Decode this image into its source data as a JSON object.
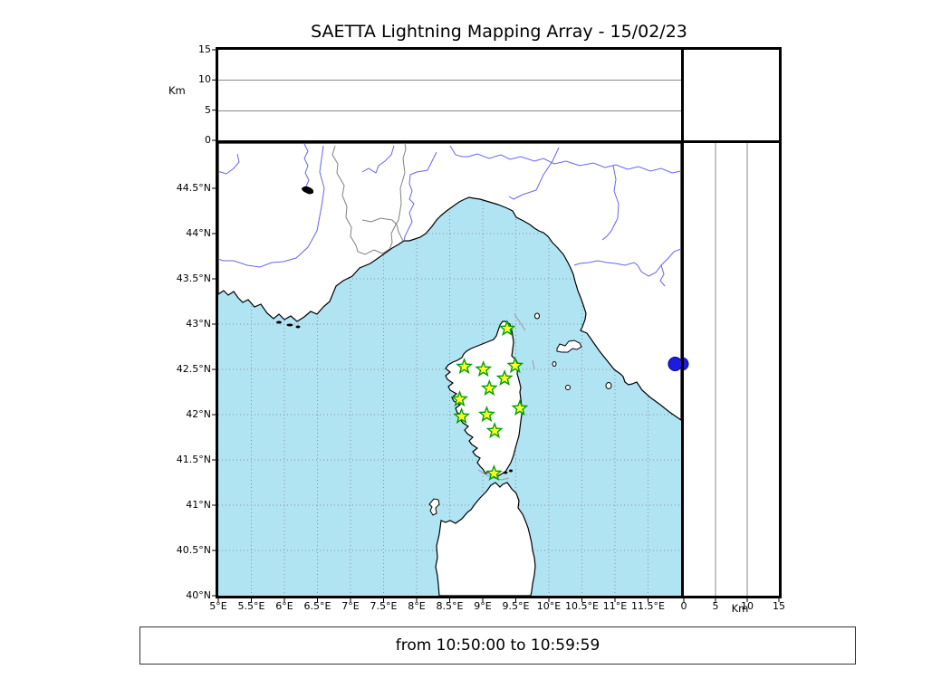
{
  "title": "SAETTA Lightning Mapping Array - 15/02/23",
  "footer": {
    "text": "from 10:50:00 to 10:59:59"
  },
  "altitude_panel": {
    "axis_label": "Km",
    "ticks": [
      {
        "v": 15,
        "l": "15"
      },
      {
        "v": 10,
        "l": "10"
      },
      {
        "v": 5,
        "l": "5"
      },
      {
        "v": 0,
        "l": "0"
      }
    ]
  },
  "side_panel": {
    "axis_label": "Km",
    "ticks": [
      {
        "v": 0,
        "l": "0"
      },
      {
        "v": 5,
        "l": "5"
      },
      {
        "v": 10,
        "l": "10"
      },
      {
        "v": 15,
        "l": "15"
      }
    ]
  },
  "map": {
    "lon_ticks": [
      {
        "v": 5,
        "l": "5°E"
      },
      {
        "v": 5.5,
        "l": "5.5°E"
      },
      {
        "v": 6,
        "l": "6°E"
      },
      {
        "v": 6.5,
        "l": "6.5°E"
      },
      {
        "v": 7,
        "l": "7°E"
      },
      {
        "v": 7.5,
        "l": "7.5°E"
      },
      {
        "v": 8,
        "l": "8°E"
      },
      {
        "v": 8.5,
        "l": "8.5°E"
      },
      {
        "v": 9,
        "l": "9°E"
      },
      {
        "v": 9.5,
        "l": "9.5°E"
      },
      {
        "v": 10,
        "l": "10°E"
      },
      {
        "v": 10.5,
        "l": "10.5°E"
      },
      {
        "v": 11,
        "l": "11°E"
      },
      {
        "v": 11.5,
        "l": "11.5°E"
      }
    ],
    "lat_ticks": [
      {
        "v": 44.5,
        "l": "44.5°N"
      },
      {
        "v": 44,
        "l": "44°N"
      },
      {
        "v": 43.5,
        "l": "43.5°N"
      },
      {
        "v": 43,
        "l": "43°N"
      },
      {
        "v": 42.5,
        "l": "42.5°N"
      },
      {
        "v": 42,
        "l": "42°N"
      },
      {
        "v": 41.5,
        "l": "41.5°N"
      },
      {
        "v": 41,
        "l": "41°N"
      },
      {
        "v": 40.5,
        "l": "40.5°N"
      },
      {
        "v": 40,
        "l": "40°N"
      }
    ]
  },
  "colors": {
    "sea": "#b0e4f2",
    "land": "#ffffff",
    "river": "#6666f0",
    "grid": "#909090",
    "station_fill": "#ffff2e",
    "station_stroke": "#00a000",
    "source_fill": "#1c1cdf",
    "source_stroke": "#0000a0"
  },
  "chart_data": {
    "type": "scatter",
    "title": "SAETTA Lightning Mapping Array - 15/02/23",
    "map_extent": {
      "lon_min": 5,
      "lon_max": 12,
      "lat_min": 40,
      "lat_max": 45
    },
    "altitude_axis_km": {
      "min": 0,
      "max": 15,
      "ticks": [
        0,
        5,
        10,
        15
      ]
    },
    "stations": [
      {
        "lon": 9.37,
        "lat": 42.95
      },
      {
        "lon": 8.72,
        "lat": 42.53
      },
      {
        "lon": 9.01,
        "lat": 42.5
      },
      {
        "lon": 9.49,
        "lat": 42.54
      },
      {
        "lon": 9.33,
        "lat": 42.4
      },
      {
        "lon": 9.1,
        "lat": 42.29
      },
      {
        "lon": 8.65,
        "lat": 42.17
      },
      {
        "lon": 9.56,
        "lat": 42.07
      },
      {
        "lon": 9.06,
        "lat": 42.0
      },
      {
        "lon": 8.68,
        "lat": 41.98
      },
      {
        "lon": 9.18,
        "lat": 41.82
      },
      {
        "lon": 9.17,
        "lat": 41.35
      }
    ],
    "sources": [
      {
        "lon": 11.91,
        "lat": 42.56,
        "alt_km": 0
      }
    ],
    "time_window": {
      "from": "10:50:00",
      "to": "10:59:59"
    }
  }
}
